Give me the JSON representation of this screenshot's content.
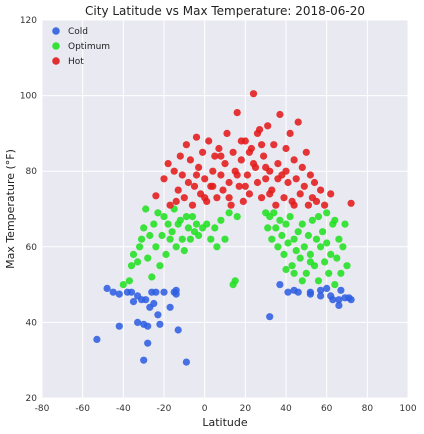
{
  "chart_data": {
    "type": "scatter",
    "title": "City Latitude vs Max Temperature: 2018-06-20",
    "xlabel": "Latitude",
    "ylabel": "Max Temperature (°F)",
    "xlim": [
      -80,
      100
    ],
    "ylim": [
      20,
      120
    ],
    "x_ticks": [
      -80,
      -60,
      -40,
      -20,
      0,
      20,
      40,
      60,
      80,
      100
    ],
    "y_ticks": [
      20,
      40,
      60,
      80,
      100,
      120
    ],
    "grid": true,
    "legend_position": "top-left",
    "series": [
      {
        "name": "Cold",
        "color": "#2f5fe0",
        "points": [
          [
            -53,
            35.5
          ],
          [
            -48,
            49
          ],
          [
            -45,
            48
          ],
          [
            -42,
            47.5
          ],
          [
            -42,
            39
          ],
          [
            -38,
            48
          ],
          [
            -36,
            48
          ],
          [
            -35,
            45.5
          ],
          [
            -33,
            47
          ],
          [
            -33,
            40
          ],
          [
            -31,
            46
          ],
          [
            -30,
            30
          ],
          [
            -30,
            39.5
          ],
          [
            -29,
            46
          ],
          [
            -28,
            39
          ],
          [
            -28,
            34.5
          ],
          [
            -27,
            44
          ],
          [
            -26,
            48
          ],
          [
            -25,
            45
          ],
          [
            -24,
            48
          ],
          [
            -23,
            42
          ],
          [
            -22,
            39.5
          ],
          [
            -20,
            48
          ],
          [
            -17,
            44
          ],
          [
            -15,
            48
          ],
          [
            -14,
            48.5
          ],
          [
            -14,
            47.5
          ],
          [
            -13,
            38
          ],
          [
            -9,
            29.5
          ],
          [
            32,
            41.5
          ],
          [
            37,
            50
          ],
          [
            41,
            48
          ],
          [
            44,
            48.5
          ],
          [
            46,
            48
          ],
          [
            52,
            48
          ],
          [
            57,
            48.5
          ],
          [
            60,
            49
          ],
          [
            62,
            47
          ],
          [
            63,
            46
          ],
          [
            66,
            44.5
          ],
          [
            66,
            46
          ],
          [
            67,
            48.5
          ],
          [
            69,
            46.5
          ],
          [
            71,
            46.5
          ],
          [
            72,
            46
          ],
          [
            52,
            47.5
          ],
          [
            57,
            47
          ]
        ]
      },
      {
        "name": "Optimum",
        "color": "#22e022",
        "points": [
          [
            -40,
            50
          ],
          [
            -37,
            51
          ],
          [
            -36,
            55
          ],
          [
            -35,
            58
          ],
          [
            -33,
            56
          ],
          [
            -32,
            60
          ],
          [
            -31,
            62
          ],
          [
            -30,
            65
          ],
          [
            -29,
            70
          ],
          [
            -28,
            57
          ],
          [
            -27,
            63
          ],
          [
            -26,
            52
          ],
          [
            -25,
            66
          ],
          [
            -24,
            60
          ],
          [
            -23,
            69
          ],
          [
            -22,
            55
          ],
          [
            -21,
            63
          ],
          [
            -20,
            68
          ],
          [
            -19,
            58
          ],
          [
            -18,
            66
          ],
          [
            -17,
            62
          ],
          [
            -16,
            64
          ],
          [
            -15,
            70
          ],
          [
            -14,
            60
          ],
          [
            -13,
            66
          ],
          [
            -12,
            67
          ],
          [
            -11,
            62
          ],
          [
            -10,
            59
          ],
          [
            -9,
            68
          ],
          [
            -8,
            65
          ],
          [
            -7,
            62
          ],
          [
            -6,
            68
          ],
          [
            -5,
            64
          ],
          [
            -4,
            66
          ],
          [
            -3,
            63
          ],
          [
            -1,
            65
          ],
          [
            1,
            66
          ],
          [
            3,
            62
          ],
          [
            5,
            65
          ],
          [
            6,
            60
          ],
          [
            8,
            67
          ],
          [
            10,
            62
          ],
          [
            12,
            69
          ],
          [
            14,
            50
          ],
          [
            15,
            51
          ],
          [
            16,
            68
          ],
          [
            30,
            69
          ],
          [
            31,
            65
          ],
          [
            32,
            68
          ],
          [
            33,
            62
          ],
          [
            34,
            69
          ],
          [
            35,
            65
          ],
          [
            36,
            60
          ],
          [
            37,
            67
          ],
          [
            38,
            63
          ],
          [
            39,
            58
          ],
          [
            40,
            66
          ],
          [
            41,
            61
          ],
          [
            42,
            68
          ],
          [
            43,
            55
          ],
          [
            44,
            62
          ],
          [
            45,
            59
          ],
          [
            46,
            64
          ],
          [
            47,
            57
          ],
          [
            48,
            66
          ],
          [
            49,
            60
          ],
          [
            50,
            53
          ],
          [
            51,
            63
          ],
          [
            52,
            58
          ],
          [
            53,
            67
          ],
          [
            54,
            55
          ],
          [
            55,
            62
          ],
          [
            56,
            51
          ],
          [
            57,
            60
          ],
          [
            58,
            64
          ],
          [
            59,
            56
          ],
          [
            60,
            61
          ],
          [
            61,
            53
          ],
          [
            62,
            58
          ],
          [
            63,
            66
          ],
          [
            64,
            50
          ],
          [
            65,
            57
          ],
          [
            66,
            62
          ],
          [
            67,
            53
          ],
          [
            68,
            60
          ],
          [
            69,
            66
          ],
          [
            70,
            55
          ],
          [
            56,
            68
          ],
          [
            60,
            69
          ],
          [
            64,
            67
          ],
          [
            44,
            53
          ],
          [
            48,
            51
          ],
          [
            52,
            56
          ],
          [
            40,
            54
          ]
        ]
      },
      {
        "name": "Hot",
        "color": "#e21a1a",
        "points": [
          [
            -24,
            73.5
          ],
          [
            -20,
            78
          ],
          [
            -18,
            82
          ],
          [
            -17,
            71
          ],
          [
            -15,
            80
          ],
          [
            -14,
            72
          ],
          [
            -13,
            75
          ],
          [
            -12,
            84
          ],
          [
            -11,
            79
          ],
          [
            -10,
            73
          ],
          [
            -9,
            87
          ],
          [
            -8,
            77
          ],
          [
            -7,
            83
          ],
          [
            -6,
            71
          ],
          [
            -5,
            76
          ],
          [
            -4,
            89
          ],
          [
            -3,
            81
          ],
          [
            -2,
            74
          ],
          [
            -1,
            85
          ],
          [
            0,
            78
          ],
          [
            1,
            72
          ],
          [
            2,
            88
          ],
          [
            3,
            76
          ],
          [
            4,
            80
          ],
          [
            5,
            84
          ],
          [
            6,
            73
          ],
          [
            7,
            86
          ],
          [
            8,
            79
          ],
          [
            9,
            75
          ],
          [
            10,
            82
          ],
          [
            11,
            90
          ],
          [
            12,
            77
          ],
          [
            13,
            71
          ],
          [
            14,
            85
          ],
          [
            15,
            80
          ],
          [
            16,
            95.5
          ],
          [
            17,
            76
          ],
          [
            18,
            83
          ],
          [
            19,
            72
          ],
          [
            20,
            88
          ],
          [
            21,
            79
          ],
          [
            22,
            74
          ],
          [
            23,
            86
          ],
          [
            24,
            100.5
          ],
          [
            25,
            81
          ],
          [
            26,
            77
          ],
          [
            27,
            91
          ],
          [
            28,
            73
          ],
          [
            29,
            84
          ],
          [
            30,
            78
          ],
          [
            31,
            92
          ],
          [
            32,
            80
          ],
          [
            33,
            75
          ],
          [
            34,
            87
          ],
          [
            35,
            71
          ],
          [
            36,
            82
          ],
          [
            37,
            95
          ],
          [
            38,
            79
          ],
          [
            39,
            73
          ],
          [
            40,
            86
          ],
          [
            41,
            77
          ],
          [
            42,
            90
          ],
          [
            43,
            72
          ],
          [
            44,
            83
          ],
          [
            45,
            78
          ],
          [
            46,
            93
          ],
          [
            47,
            74
          ],
          [
            48,
            81
          ],
          [
            49,
            76
          ],
          [
            50,
            85
          ],
          [
            51,
            71
          ],
          [
            52,
            79
          ],
          [
            53,
            73
          ],
          [
            54,
            77
          ],
          [
            55,
            72
          ],
          [
            57,
            75
          ],
          [
            59,
            71
          ],
          [
            62,
            74
          ],
          [
            72,
            71.5
          ],
          [
            -4,
            79
          ],
          [
            0,
            73
          ],
          [
            4,
            76
          ],
          [
            8,
            84
          ],
          [
            12,
            73
          ],
          [
            16,
            79
          ],
          [
            20,
            76
          ],
          [
            24,
            82
          ],
          [
            28,
            87
          ],
          [
            32,
            74
          ],
          [
            36,
            78
          ],
          [
            40,
            80
          ],
          [
            44,
            71
          ],
          [
            18,
            88
          ],
          [
            22,
            85
          ],
          [
            26,
            90
          ],
          [
            30,
            81
          ]
        ]
      }
    ]
  }
}
